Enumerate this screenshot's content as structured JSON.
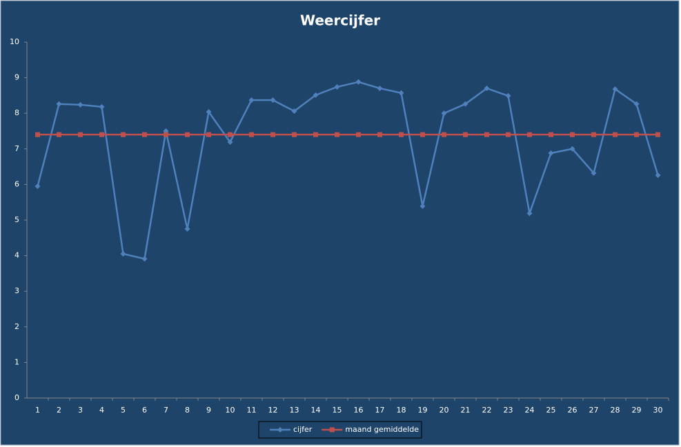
{
  "chart_data": {
    "type": "line",
    "title": "Weercijfer",
    "categories": [
      "1",
      "2",
      "3",
      "4",
      "5",
      "6",
      "7",
      "8",
      "9",
      "10",
      "11",
      "12",
      "13",
      "14",
      "15",
      "16",
      "17",
      "18",
      "19",
      "20",
      "21",
      "22",
      "23",
      "24",
      "25",
      "26",
      "27",
      "28",
      "29",
      "30"
    ],
    "series": [
      {
        "name": "cijfer",
        "color": "#4f81bd",
        "marker": "diamond",
        "values": [
          5.95,
          8.26,
          8.24,
          8.18,
          4.05,
          3.91,
          7.5,
          4.75,
          8.04,
          7.19,
          8.37,
          8.37,
          8.06,
          8.51,
          8.74,
          8.88,
          8.7,
          8.57,
          5.39,
          8.0,
          8.26,
          8.7,
          8.49,
          5.19,
          6.88,
          7.0,
          6.32,
          8.68,
          8.26,
          6.26
        ]
      },
      {
        "name": "maand gemiddelde",
        "color": "#c0504d",
        "marker": "square",
        "values": [
          7.4,
          7.4,
          7.4,
          7.4,
          7.4,
          7.4,
          7.4,
          7.4,
          7.4,
          7.4,
          7.4,
          7.4,
          7.4,
          7.4,
          7.4,
          7.4,
          7.4,
          7.4,
          7.4,
          7.4,
          7.4,
          7.4,
          7.4,
          7.4,
          7.4,
          7.4,
          7.4,
          7.4,
          7.4,
          7.4
        ]
      }
    ],
    "ylim": [
      0,
      10
    ],
    "yticks": [
      0,
      1,
      2,
      3,
      4,
      5,
      6,
      7,
      8,
      9,
      10
    ],
    "grid": false,
    "legend": "bottom"
  }
}
